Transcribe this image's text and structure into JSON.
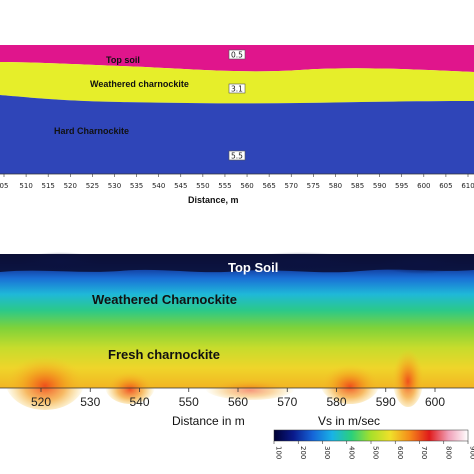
{
  "top_section": {
    "layers": [
      {
        "name": "Top soil",
        "color": "#e0158c",
        "velocity_label": "0.5"
      },
      {
        "name": "Weathered charnockite",
        "color": "#e6ee2a",
        "velocity_label": "3.1"
      },
      {
        "name": "Hard Charnockite",
        "color": "#2f45b8",
        "velocity_label": "5.5"
      }
    ],
    "x_ticks": [
      "05",
      "510",
      "515",
      "520",
      "525",
      "530",
      "535",
      "540",
      "545",
      "550",
      "555",
      "560",
      "565",
      "570",
      "575",
      "580",
      "585",
      "590",
      "595",
      "600",
      "605",
      "610"
    ],
    "x_axis_title": "Distance, m"
  },
  "bottom_section": {
    "zone_labels": [
      "Top Soil",
      "Weathered  Charnockite",
      "Fresh charnockite"
    ],
    "x_ticks": [
      "520",
      "530",
      "540",
      "550",
      "560",
      "570",
      "580",
      "590",
      "600"
    ],
    "x_axis_title": "Distance in m",
    "colorbar": {
      "title": "Vs in m/sec",
      "ticks": [
        "100",
        "200",
        "300",
        "400",
        "500",
        "600",
        "700",
        "800",
        "900"
      ],
      "colors": [
        "#000033",
        "#0a1a8c",
        "#1565d8",
        "#19b3e6",
        "#2bd07a",
        "#a8e02a",
        "#f0e02a",
        "#f58a1a",
        "#e01a1a",
        "#f0a0b8",
        "#ffffff"
      ]
    }
  }
}
